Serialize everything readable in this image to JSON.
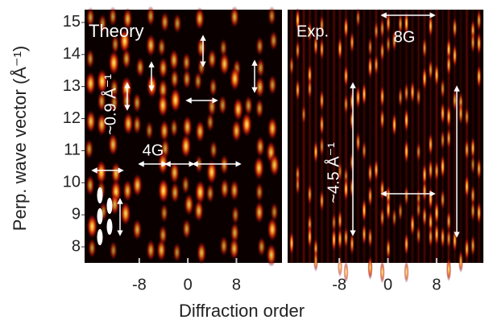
{
  "chart_data": [
    {
      "type": "heatmap",
      "title": "Theory",
      "ylabel": "Perp. wave vector  (Å⁻¹)",
      "xlabel": "Diffraction order",
      "xlim": [
        -17,
        15.5
      ],
      "xticks": [
        -8,
        0,
        8
      ],
      "ylim": [
        7.5,
        15.4
      ],
      "yticks": [
        8,
        9,
        10,
        11,
        12,
        13,
        14,
        15
      ],
      "annotations": [
        "~0.9 Å⁻¹",
        "4G"
      ]
    },
    {
      "type": "heatmap",
      "title": "Exp.",
      "xlim": [
        -16.5,
        15.7
      ],
      "xticks": [
        -8,
        0,
        8
      ],
      "ylim": [
        7.5,
        15.4
      ],
      "annotations": [
        "~4.5 Å⁻¹",
        "8G"
      ]
    }
  ]
}
